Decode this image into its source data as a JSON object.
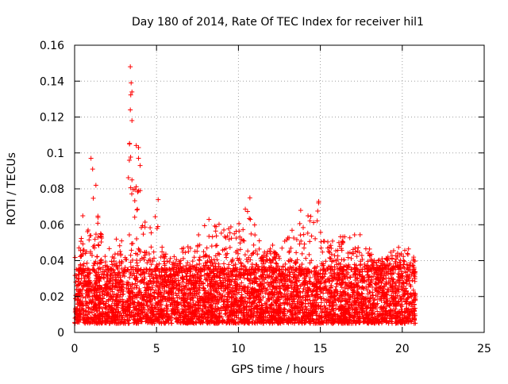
{
  "chart_data": {
    "type": "scatter",
    "title": "Day 180 of 2014, Rate Of TEC Index for receiver hil1",
    "xlabel": "GPS time / hours",
    "ylabel": "ROTI / TECUs",
    "xlim": [
      0,
      25
    ],
    "ylim": [
      0,
      0.16
    ],
    "x_ticks": [
      0,
      5,
      10,
      15,
      20,
      25
    ],
    "y_ticks": [
      0,
      0.02,
      0.04,
      0.06,
      0.08,
      0.1,
      0.12,
      0.14,
      0.16
    ],
    "x_tick_labels": [
      "0",
      "5",
      "10",
      "15",
      "20",
      "25"
    ],
    "y_tick_labels": [
      "0",
      "0.02",
      "0.04",
      "0.06",
      "0.08",
      "0.1",
      "0.12",
      "0.14",
      "0.16"
    ],
    "grid": true,
    "marker": "+",
    "series_color": "#ff0000",
    "series": [
      {
        "name": "hil1",
        "data_extent_hours": [
          0,
          20.8
        ],
        "typical_range": [
          0.005,
          0.035
        ],
        "envelope": [
          {
            "x": 0.0,
            "y": 0.045
          },
          {
            "x": 0.5,
            "y": 0.055
          },
          {
            "x": 1.0,
            "y": 0.097
          },
          {
            "x": 1.2,
            "y": 0.09
          },
          {
            "x": 1.5,
            "y": 0.06
          },
          {
            "x": 2.0,
            "y": 0.047
          },
          {
            "x": 2.5,
            "y": 0.05
          },
          {
            "x": 3.0,
            "y": 0.07
          },
          {
            "x": 3.3,
            "y": 0.148
          },
          {
            "x": 3.8,
            "y": 0.103
          },
          {
            "x": 4.0,
            "y": 0.08
          },
          {
            "x": 4.5,
            "y": 0.065
          },
          {
            "x": 5.0,
            "y": 0.074
          },
          {
            "x": 5.5,
            "y": 0.045
          },
          {
            "x": 6.0,
            "y": 0.045
          },
          {
            "x": 7.0,
            "y": 0.05
          },
          {
            "x": 8.0,
            "y": 0.063
          },
          {
            "x": 9.0,
            "y": 0.06
          },
          {
            "x": 10.0,
            "y": 0.062
          },
          {
            "x": 10.7,
            "y": 0.075
          },
          {
            "x": 11.5,
            "y": 0.045
          },
          {
            "x": 12.5,
            "y": 0.052
          },
          {
            "x": 13.5,
            "y": 0.065
          },
          {
            "x": 14.3,
            "y": 0.065
          },
          {
            "x": 14.9,
            "y": 0.073
          },
          {
            "x": 15.5,
            "y": 0.05
          },
          {
            "x": 16.5,
            "y": 0.055
          },
          {
            "x": 17.5,
            "y": 0.055
          },
          {
            "x": 18.5,
            "y": 0.04
          },
          {
            "x": 19.5,
            "y": 0.046
          },
          {
            "x": 20.3,
            "y": 0.053
          },
          {
            "x": 20.8,
            "y": 0.04
          }
        ],
        "spikes": [
          {
            "x": 1.0,
            "y": 0.097
          },
          {
            "x": 1.1,
            "y": 0.091
          },
          {
            "x": 1.3,
            "y": 0.082
          },
          {
            "x": 3.4,
            "y": 0.148
          },
          {
            "x": 3.45,
            "y": 0.139
          },
          {
            "x": 3.5,
            "y": 0.134
          },
          {
            "x": 3.4,
            "y": 0.124
          },
          {
            "x": 3.5,
            "y": 0.118
          },
          {
            "x": 3.35,
            "y": 0.105
          },
          {
            "x": 3.9,
            "y": 0.103
          },
          {
            "x": 3.9,
            "y": 0.097
          },
          {
            "x": 4.0,
            "y": 0.093
          },
          {
            "x": 3.5,
            "y": 0.085
          },
          {
            "x": 4.0,
            "y": 0.079
          },
          {
            "x": 10.7,
            "y": 0.075
          },
          {
            "x": 14.9,
            "y": 0.073
          },
          {
            "x": 5.1,
            "y": 0.074
          },
          {
            "x": 0.5,
            "y": 0.065
          },
          {
            "x": 8.2,
            "y": 0.063
          },
          {
            "x": 13.8,
            "y": 0.068
          }
        ]
      }
    ]
  }
}
